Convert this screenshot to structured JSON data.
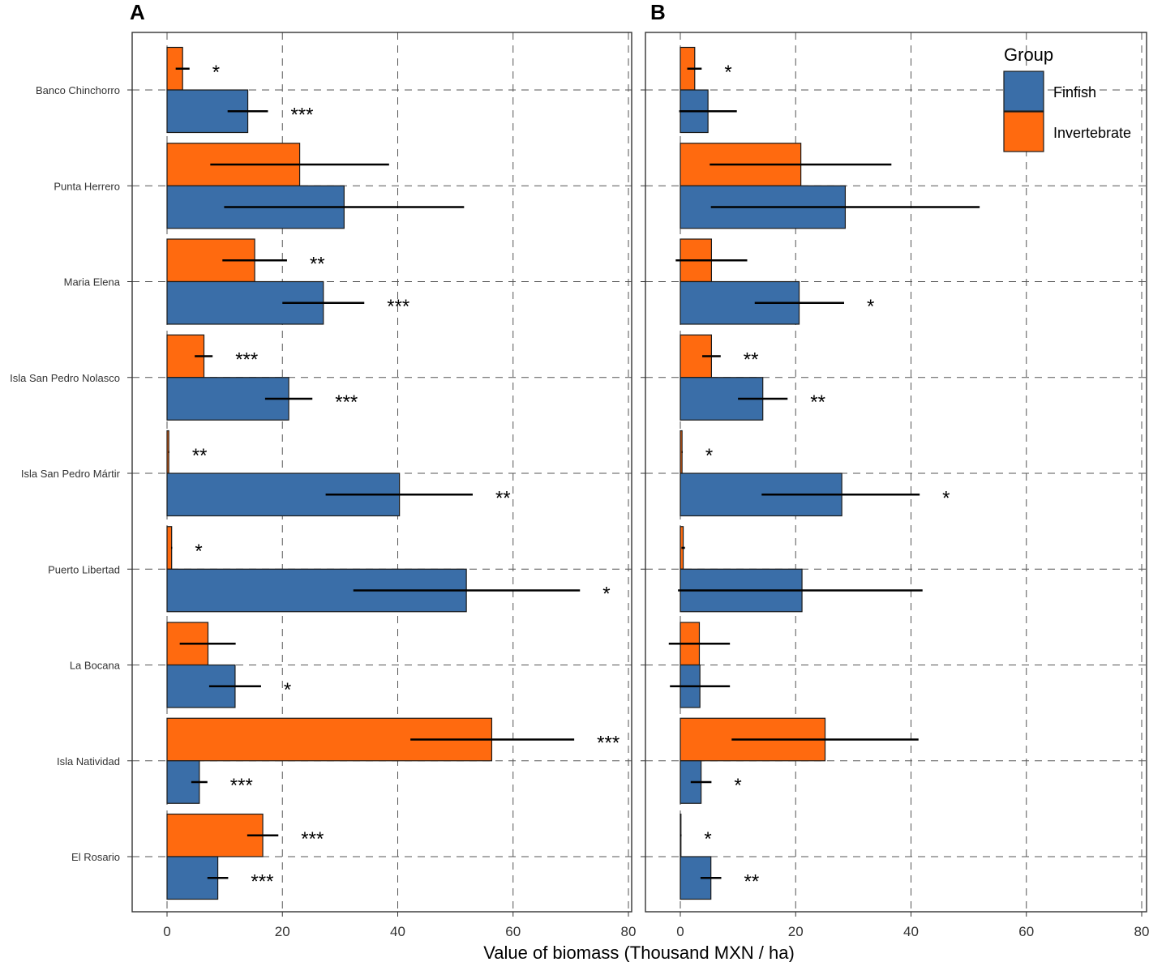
{
  "chart_data": [
    {
      "panel_label": "A",
      "type": "bar",
      "orientation": "horizontal",
      "categories": [
        "Banco Chinchorro",
        "Punta Herrero",
        "Maria Elena",
        "Isla San Pedro Nolasco",
        "Isla San Pedro Mártir",
        "Puerto Libertad",
        "La Bocana",
        "Isla Natividad",
        "El Rosario"
      ],
      "series": [
        {
          "name": "Invertebrate",
          "values": [
            2.7,
            23.0,
            15.2,
            6.4,
            0.3,
            0.8,
            7.1,
            56.3,
            16.6
          ],
          "error_low": [
            1.5,
            7.5,
            9.6,
            4.8,
            0.2,
            0.7,
            2.2,
            42.2,
            13.9
          ],
          "error_high": [
            3.9,
            38.5,
            20.8,
            7.9,
            0.4,
            0.9,
            11.9,
            70.6,
            19.3
          ],
          "significance": [
            "*",
            "",
            "**",
            "***",
            "**",
            "*",
            "",
            "***",
            "***"
          ]
        },
        {
          "name": "Finfish",
          "values": [
            14.0,
            30.7,
            27.1,
            21.1,
            40.3,
            51.9,
            11.8,
            5.6,
            8.8
          ],
          "error_low": [
            10.5,
            9.9,
            20.0,
            17.0,
            27.5,
            32.3,
            7.3,
            4.2,
            7.0
          ],
          "error_high": [
            17.5,
            51.5,
            34.2,
            25.2,
            53.0,
            71.6,
            16.3,
            7.0,
            10.6
          ],
          "significance": [
            "***",
            "",
            "***",
            "***",
            "**",
            "*",
            "*",
            "***",
            "***"
          ]
        }
      ],
      "xlim": [
        -6,
        81
      ],
      "xticks": [
        0,
        20,
        40,
        60,
        80
      ],
      "xlabel": "Value of biomass (Thousand MXN / ha)",
      "grid": "dashed"
    },
    {
      "panel_label": "B",
      "type": "bar",
      "orientation": "horizontal",
      "categories": [
        "Banco Chinchorro",
        "Punta Herrero",
        "Maria Elena",
        "Isla San Pedro Nolasco",
        "Isla San Pedro Mártir",
        "Puerto Libertad",
        "La Bocana",
        "Isla Natividad",
        "El Rosario"
      ],
      "series": [
        {
          "name": "Invertebrate",
          "values": [
            2.5,
            20.9,
            5.4,
            5.4,
            0.3,
            0.5,
            3.3,
            25.1,
            0.1
          ],
          "error_low": [
            1.2,
            5.1,
            -0.8,
            3.8,
            0.2,
            0.2,
            -2.0,
            8.9,
            0.0
          ],
          "error_high": [
            3.7,
            36.6,
            11.6,
            7.0,
            0.4,
            0.8,
            8.6,
            41.3,
            0.2
          ],
          "significance": [
            "*",
            "",
            "",
            "**",
            "*",
            "",
            "",
            "",
            "*"
          ]
        },
        {
          "name": "Finfish",
          "values": [
            4.8,
            28.6,
            20.6,
            14.3,
            28.0,
            21.1,
            3.4,
            3.6,
            5.3
          ],
          "error_low": [
            -0.2,
            5.3,
            12.9,
            10.0,
            14.1,
            -0.4,
            -1.8,
            1.8,
            3.5
          ],
          "error_high": [
            9.8,
            51.9,
            28.4,
            18.6,
            41.5,
            42.0,
            8.6,
            5.4,
            7.1
          ],
          "significance": [
            "",
            "",
            "*",
            "**",
            "*",
            "",
            "",
            "*",
            "**"
          ]
        }
      ],
      "xlim": [
        -6,
        81
      ],
      "xticks": [
        0,
        20,
        40,
        60,
        80
      ],
      "grid": "dashed"
    }
  ],
  "legend": {
    "title": "Group",
    "items": [
      {
        "label": "Finfish",
        "color": "#3a6ea8"
      },
      {
        "label": "Invertebrate",
        "color": "#ff6a0f"
      }
    ],
    "placement": "top-right"
  },
  "colors": {
    "Finfish": "#3a6ea8",
    "Invertebrate": "#ff6a0f"
  }
}
